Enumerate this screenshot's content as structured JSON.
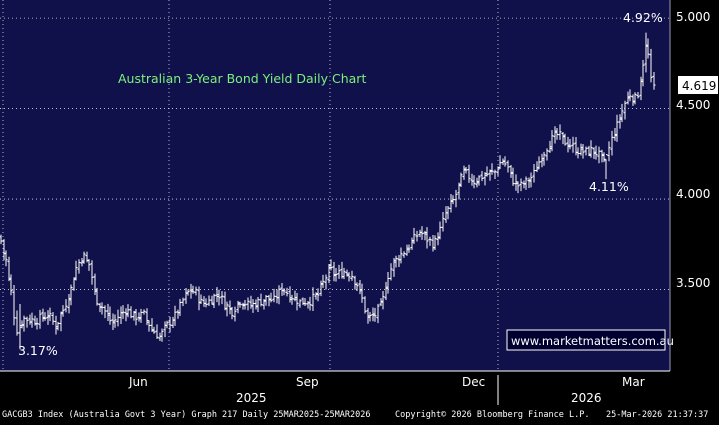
{
  "chart_data": {
    "type": "ohlc",
    "title": "Australian 3-Year Bond Yield Daily Chart",
    "ylim": [
      3.05,
      5.1
    ],
    "yticks": [
      "3.500",
      "4.000",
      "4.500",
      "5.000"
    ],
    "ytick_values": [
      3.5,
      4.0,
      4.5,
      5.0
    ],
    "x_month_labels": [
      "Jun",
      "Sep",
      "Dec",
      "Mar"
    ],
    "x_year_labels": [
      "2025",
      "2026"
    ],
    "grid": true,
    "last_value_label": "4.619",
    "last_value": 4.619,
    "annotations": [
      {
        "text": "4.92%",
        "value": 4.92
      },
      {
        "text": "4.11%",
        "value": 4.11
      },
      {
        "text": "3.17%",
        "value": 3.17
      }
    ],
    "watermark": "www.marketmatters.com.au",
    "colors": {
      "background": "#000000",
      "plot_background": "#10104a",
      "bars": "#ffffff",
      "title": "#7cf07c",
      "grid": "#ffffff"
    },
    "anchors": [
      [
        0,
        3.79
      ],
      [
        6,
        3.66
      ],
      [
        12,
        3.45
      ],
      [
        16,
        3.27
      ],
      [
        24,
        3.34
      ],
      [
        35,
        3.33
      ],
      [
        48,
        3.36
      ],
      [
        56,
        3.3
      ],
      [
        64,
        3.4
      ],
      [
        70,
        3.48
      ],
      [
        76,
        3.62
      ],
      [
        83,
        3.69
      ],
      [
        90,
        3.63
      ],
      [
        96,
        3.45
      ],
      [
        104,
        3.39
      ],
      [
        112,
        3.31
      ],
      [
        118,
        3.35
      ],
      [
        126,
        3.39
      ],
      [
        134,
        3.35
      ],
      [
        144,
        3.36
      ],
      [
        152,
        3.28
      ],
      [
        160,
        3.24
      ],
      [
        168,
        3.31
      ],
      [
        176,
        3.36
      ],
      [
        183,
        3.44
      ],
      [
        190,
        3.5
      ],
      [
        196,
        3.48
      ],
      [
        202,
        3.42
      ],
      [
        210,
        3.44
      ],
      [
        218,
        3.48
      ],
      [
        225,
        3.42
      ],
      [
        232,
        3.38
      ],
      [
        240,
        3.44
      ],
      [
        250,
        3.41
      ],
      [
        258,
        3.43
      ],
      [
        266,
        3.45
      ],
      [
        274,
        3.44
      ],
      [
        282,
        3.51
      ],
      [
        290,
        3.47
      ],
      [
        300,
        3.43
      ],
      [
        310,
        3.44
      ],
      [
        318,
        3.47
      ],
      [
        324,
        3.55
      ],
      [
        330,
        3.61
      ],
      [
        336,
        3.58
      ],
      [
        344,
        3.6
      ],
      [
        352,
        3.58
      ],
      [
        358,
        3.52
      ],
      [
        364,
        3.41
      ],
      [
        368,
        3.34
      ],
      [
        375,
        3.36
      ],
      [
        382,
        3.42
      ],
      [
        388,
        3.58
      ],
      [
        394,
        3.65
      ],
      [
        400,
        3.69
      ],
      [
        408,
        3.73
      ],
      [
        414,
        3.78
      ],
      [
        420,
        3.82
      ],
      [
        427,
        3.78
      ],
      [
        434,
        3.75
      ],
      [
        440,
        3.83
      ],
      [
        446,
        3.92
      ],
      [
        452,
        3.98
      ],
      [
        458,
        4.05
      ],
      [
        463,
        4.15
      ],
      [
        468,
        4.13
      ],
      [
        474,
        4.1
      ],
      [
        480,
        4.12
      ],
      [
        488,
        4.14
      ],
      [
        495,
        4.15
      ],
      [
        502,
        4.22
      ],
      [
        508,
        4.17
      ],
      [
        514,
        4.09
      ],
      [
        520,
        4.07
      ],
      [
        528,
        4.1
      ],
      [
        534,
        4.14
      ],
      [
        540,
        4.22
      ],
      [
        546,
        4.28
      ],
      [
        552,
        4.33
      ],
      [
        558,
        4.36
      ],
      [
        564,
        4.32
      ],
      [
        570,
        4.3
      ],
      [
        578,
        4.27
      ],
      [
        586,
        4.26
      ],
      [
        592,
        4.27
      ],
      [
        598,
        4.25
      ],
      [
        604,
        4.2
      ],
      [
        608,
        4.26
      ],
      [
        612,
        4.33
      ],
      [
        618,
        4.42
      ],
      [
        624,
        4.52
      ],
      [
        630,
        4.58
      ],
      [
        636,
        4.55
      ],
      [
        640,
        4.62
      ],
      [
        644,
        4.8
      ],
      [
        647,
        4.86
      ],
      [
        650,
        4.66
      ],
      [
        654,
        4.62
      ]
    ],
    "pinned_bars": [
      {
        "x": 20,
        "low": 3.17,
        "high": 3.42
      },
      {
        "x": 606,
        "low": 4.11,
        "high": 4.22
      },
      {
        "x": 646,
        "low": 4.7,
        "high": 4.92
      }
    ]
  },
  "footer": {
    "left": "GACGB3 Index (Australia Govt 3 Year) Graph 217 Daily 25MAR2025-25MAR2026",
    "center": "Copyright© 2026 Bloomberg Finance L.P.",
    "right": "25-Mar-2026 21:37:37"
  }
}
